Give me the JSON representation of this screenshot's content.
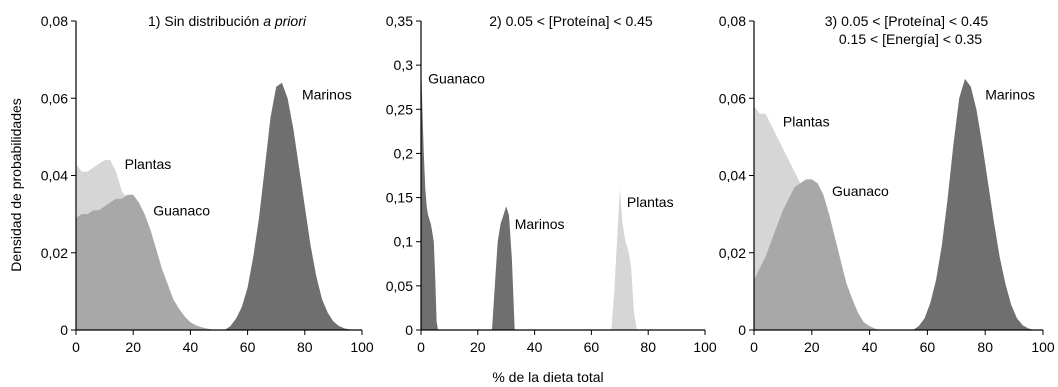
{
  "figure": {
    "ylabel": "Densidad de probabilidades",
    "xlabel": "% de la dieta total"
  },
  "colors": {
    "plantas": "#d6d6d6",
    "guanaco": "#a8a8a8",
    "marinos": "#6f6f6f",
    "axis": "#000000"
  },
  "chart_data": [
    {
      "type": "area",
      "title": "1) Sin distribución ",
      "title_italic": "a priori",
      "title_line2": "",
      "xlim": [
        0,
        100
      ],
      "ylim": [
        0,
        0.08
      ],
      "xticks": [
        0,
        20,
        40,
        60,
        80,
        100
      ],
      "yticks": [
        0,
        0.02,
        0.04,
        0.06,
        0.08
      ],
      "ytick_labels": [
        "0",
        "0,02",
        "0,04",
        "0,06",
        "0,08"
      ],
      "series": [
        {
          "name": "Plantas",
          "color_key": "plantas",
          "label_pos": [
            17,
            0.043
          ],
          "x": [
            0,
            2,
            4,
            6,
            8,
            10,
            12,
            14,
            16,
            18,
            20,
            22,
            24,
            26,
            28,
            30,
            32,
            34,
            36,
            38,
            40,
            42,
            44,
            46,
            48,
            50
          ],
          "y": [
            0.043,
            0.041,
            0.041,
            0.042,
            0.043,
            0.044,
            0.044,
            0.041,
            0.036,
            0.034,
            0.032,
            0.028,
            0.023,
            0.019,
            0.015,
            0.011,
            0.008,
            0.005,
            0.0035,
            0.002,
            0.0012,
            0.0007,
            0.0004,
            0.0002,
            0.0001,
            0
          ]
        },
        {
          "name": "Guanaco",
          "color_key": "guanaco",
          "label_pos": [
            27,
            0.031
          ],
          "x": [
            0,
            2,
            4,
            6,
            8,
            10,
            12,
            14,
            16,
            18,
            20,
            22,
            24,
            26,
            28,
            30,
            32,
            34,
            36,
            38,
            40,
            42,
            44,
            46,
            48,
            50
          ],
          "y": [
            0.029,
            0.03,
            0.03,
            0.031,
            0.031,
            0.032,
            0.033,
            0.034,
            0.034,
            0.035,
            0.035,
            0.033,
            0.03,
            0.026,
            0.021,
            0.016,
            0.012,
            0.008,
            0.0055,
            0.0035,
            0.002,
            0.0012,
            0.0007,
            0.0003,
            0.0001,
            0
          ]
        },
        {
          "name": "Marinos",
          "color_key": "marinos",
          "label_pos": [
            79,
            0.061
          ],
          "x": [
            52,
            54,
            56,
            58,
            60,
            62,
            64,
            66,
            68,
            70,
            72,
            74,
            76,
            78,
            80,
            82,
            84,
            86,
            88,
            90,
            92,
            94,
            96,
            98
          ],
          "y": [
            0,
            0.001,
            0.003,
            0.006,
            0.011,
            0.019,
            0.029,
            0.042,
            0.055,
            0.063,
            0.064,
            0.06,
            0.052,
            0.042,
            0.032,
            0.022,
            0.014,
            0.008,
            0.0045,
            0.0022,
            0.001,
            0.0004,
            0.0001,
            0
          ]
        }
      ]
    },
    {
      "type": "area",
      "title": "2) 0.05 < [Proteína] < 0.45",
      "title_italic": "",
      "title_line2": "",
      "xlim": [
        0,
        100
      ],
      "ylim": [
        0,
        0.35
      ],
      "xticks": [
        0,
        20,
        40,
        60,
        80,
        100
      ],
      "yticks": [
        0,
        0.05,
        0.1,
        0.15,
        0.2,
        0.25,
        0.3,
        0.35
      ],
      "ytick_labels": [
        "0",
        "0,05",
        "0,1",
        "0,15",
        "0,2",
        "0,25",
        "0,3",
        "0,35"
      ],
      "series": [
        {
          "name": "Guanaco",
          "color_key": "marinos",
          "label_pos": [
            2.5,
            0.285
          ],
          "x": [
            0,
            0.5,
            1,
            1.5,
            2,
            2.5,
            3,
            3.5,
            4,
            4.5,
            5,
            5.5,
            6
          ],
          "y": [
            0.305,
            0.25,
            0.2,
            0.16,
            0.14,
            0.13,
            0.125,
            0.12,
            0.11,
            0.1,
            0.06,
            0.01,
            0
          ]
        },
        {
          "name": "Marinos",
          "color_key": "marinos",
          "label_pos": [
            33,
            0.12
          ],
          "x": [
            25,
            26,
            27,
            28,
            29,
            30,
            31,
            32,
            33
          ],
          "y": [
            0,
            0.05,
            0.1,
            0.12,
            0.13,
            0.14,
            0.13,
            0.08,
            0
          ]
        },
        {
          "name": "Plantas",
          "color_key": "plantas",
          "label_pos": [
            72.5,
            0.145
          ],
          "x": [
            67,
            68,
            69,
            70,
            71,
            72,
            73,
            74,
            75,
            76
          ],
          "y": [
            0,
            0.04,
            0.1,
            0.16,
            0.12,
            0.1,
            0.09,
            0.07,
            0.02,
            0
          ]
        }
      ]
    },
    {
      "type": "area",
      "title": "3) 0.05 < [Proteína] < 0.45",
      "title_italic": "",
      "title_line2": "0.15 < [Energía]  < 0.35",
      "xlim": [
        0,
        100
      ],
      "ylim": [
        0,
        0.08
      ],
      "xticks": [
        0,
        20,
        40,
        60,
        80,
        100
      ],
      "yticks": [
        0,
        0.02,
        0.04,
        0.06,
        0.08
      ],
      "ytick_labels": [
        "0",
        "0,02",
        "0,04",
        "0,06",
        "0,08"
      ],
      "series": [
        {
          "name": "Plantas",
          "color_key": "plantas",
          "label_pos": [
            10,
            0.054
          ],
          "x": [
            0,
            2,
            4,
            6,
            8,
            10,
            12,
            14,
            16,
            18,
            20,
            22,
            24,
            26,
            28,
            30,
            32,
            34,
            36,
            38,
            40
          ],
          "y": [
            0.058,
            0.056,
            0.056,
            0.053,
            0.05,
            0.047,
            0.044,
            0.041,
            0.038,
            0.035,
            0.031,
            0.025,
            0.019,
            0.013,
            0.009,
            0.005,
            0.003,
            0.0015,
            0.0007,
            0.0002,
            0
          ]
        },
        {
          "name": "Guanaco",
          "color_key": "guanaco",
          "label_pos": [
            27,
            0.036
          ],
          "x": [
            0,
            2,
            4,
            6,
            8,
            10,
            12,
            14,
            16,
            18,
            20,
            22,
            24,
            26,
            28,
            30,
            32,
            34,
            36,
            38,
            40,
            42,
            44
          ],
          "y": [
            0.013,
            0.016,
            0.019,
            0.023,
            0.027,
            0.031,
            0.034,
            0.037,
            0.038,
            0.039,
            0.039,
            0.038,
            0.035,
            0.03,
            0.024,
            0.018,
            0.012,
            0.008,
            0.0045,
            0.002,
            0.001,
            0.0003,
            0
          ]
        },
        {
          "name": "Marinos",
          "color_key": "marinos",
          "label_pos": [
            80,
            0.061
          ],
          "x": [
            55,
            57,
            59,
            61,
            63,
            65,
            67,
            69,
            71,
            73,
            75,
            77,
            79,
            81,
            83,
            85,
            87,
            89,
            91,
            93,
            95,
            97
          ],
          "y": [
            0,
            0.001,
            0.003,
            0.007,
            0.013,
            0.022,
            0.034,
            0.048,
            0.06,
            0.065,
            0.063,
            0.057,
            0.048,
            0.038,
            0.028,
            0.019,
            0.012,
            0.0065,
            0.003,
            0.0012,
            0.0004,
            0
          ]
        }
      ]
    }
  ]
}
